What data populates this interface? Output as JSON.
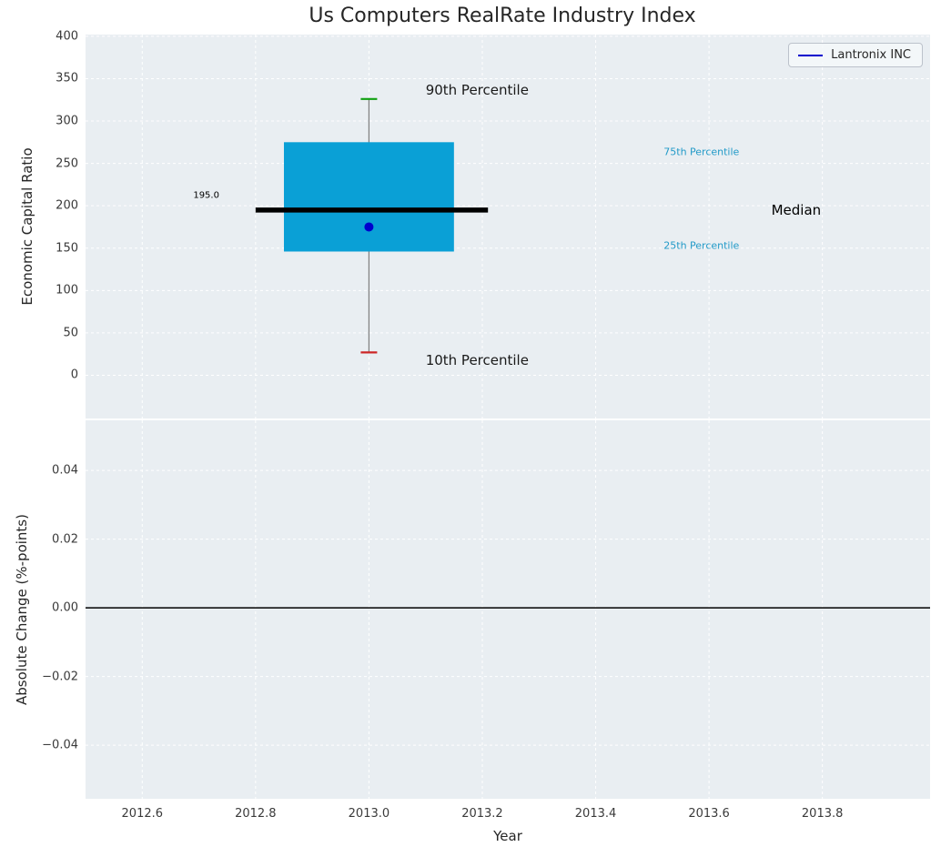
{
  "colors": {
    "axes_bg": "#e9eef2",
    "grid": "#ffffff",
    "box_fill": "#0aa0d6",
    "whisker": "#7f7f7f",
    "p90_cap": "#10a010",
    "p10_cap": "#cd2626",
    "median_line": "#000000",
    "company_dot": "#0000cd",
    "legend_line": "#0000cd",
    "percentile_label": "#229ac8",
    "zero_line": "#000000",
    "text": "#262626"
  },
  "chart_data": {
    "type": "boxplot",
    "title": "Us Computers RealRate Industry Index",
    "xlabel": "Year",
    "xlim": [
      2012.5,
      2013.99
    ],
    "xticks": [
      {
        "v": 2012.6,
        "label": "2012.6"
      },
      {
        "v": 2012.8,
        "label": "2012.8"
      },
      {
        "v": 2013.0,
        "label": "2013.0"
      },
      {
        "v": 2013.2,
        "label": "2013.2"
      },
      {
        "v": 2013.4,
        "label": "2013.4"
      },
      {
        "v": 2013.6,
        "label": "2013.6"
      },
      {
        "v": 2013.8,
        "label": "2013.8"
      }
    ],
    "grid": true,
    "legend_position": "upper right",
    "top_panel": {
      "ylabel": "Economic Capital Ratio",
      "ylim": [
        -51,
        402
      ],
      "yticks": [
        {
          "v": 400,
          "label": "400"
        },
        {
          "v": 350,
          "label": "350"
        },
        {
          "v": 300,
          "label": "300"
        },
        {
          "v": 250,
          "label": "250"
        },
        {
          "v": 200,
          "label": "200"
        },
        {
          "v": 150,
          "label": "150"
        },
        {
          "v": 100,
          "label": "100"
        },
        {
          "v": 50,
          "label": "50"
        },
        {
          "v": 0,
          "label": "0"
        }
      ],
      "series_label": "Lantronix INC",
      "box": {
        "year": 2013.0,
        "p10": 27,
        "q25": 146,
        "median": 195,
        "q75": 275,
        "p90": 326,
        "company_value": 175,
        "box_left": 2012.85,
        "box_right": 2013.15,
        "median_line_left": 2012.8,
        "median_line_right": 2013.21
      },
      "annotations": [
        {
          "name": "p90-label",
          "text": "90th Percentile",
          "x": 2013.1,
          "y": 336,
          "color": "#1a1a1a",
          "size": 15
        },
        {
          "name": "p10-label",
          "text": "10th Percentile",
          "x": 2013.1,
          "y": 18,
          "color": "#1a1a1a",
          "size": 15
        },
        {
          "name": "p75-label",
          "text": "75th Percentile",
          "x": 2013.52,
          "y": 264,
          "color": "#229ac8",
          "size": 11
        },
        {
          "name": "p25-label",
          "text": "25th Percentile",
          "x": 2013.52,
          "y": 153,
          "color": "#229ac8",
          "size": 11
        },
        {
          "name": "median-label",
          "text": "Median",
          "x": 2013.71,
          "y": 195,
          "color": "#000000",
          "size": 15
        },
        {
          "name": "median-value-label",
          "text": "195.0",
          "x": 2012.69,
          "y": 212,
          "color": "#000000",
          "size": 10
        }
      ]
    },
    "bottom_panel": {
      "ylabel": "Absolute Change (%-points)",
      "ylim": [
        -0.0556,
        0.0546
      ],
      "yticks": [
        {
          "v": 0.04,
          "label": "0.04"
        },
        {
          "v": 0.02,
          "label": "0.02"
        },
        {
          "v": 0.0,
          "label": "0.00"
        },
        {
          "v": -0.02,
          "label": "−0.02"
        },
        {
          "v": -0.04,
          "label": "−0.04"
        }
      ],
      "zero_line": 0.0
    }
  }
}
